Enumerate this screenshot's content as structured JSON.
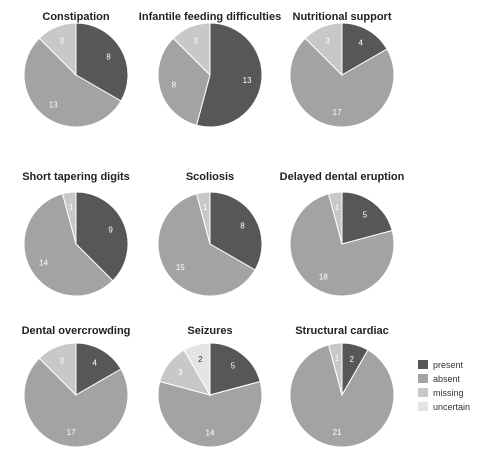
{
  "chart_data": {
    "type": "pie",
    "legend": {
      "placement": "bottom-right",
      "entries": [
        {
          "key": "present",
          "label": "present",
          "color": "#575757"
        },
        {
          "key": "absent",
          "label": "absent",
          "color": "#a3a3a3"
        },
        {
          "key": "missing",
          "label": "missing",
          "color": "#c8c8c8"
        },
        {
          "key": "uncertain",
          "label": "uncertain",
          "color": "#e4e4e4"
        }
      ]
    },
    "charts": [
      {
        "title": "Constipation",
        "slices": [
          {
            "category": "present",
            "value": 8
          },
          {
            "category": "absent",
            "value": 13
          },
          {
            "category": "missing",
            "value": 3
          }
        ]
      },
      {
        "title": "Infantile feeding difficulties",
        "slices": [
          {
            "category": "present",
            "value": 13
          },
          {
            "category": "absent",
            "value": 8
          },
          {
            "category": "missing",
            "value": 3
          }
        ]
      },
      {
        "title": "Nutritional support",
        "slices": [
          {
            "category": "present",
            "value": 4
          },
          {
            "category": "absent",
            "value": 17
          },
          {
            "category": "missing",
            "value": 3
          }
        ]
      },
      {
        "title": "Short tapering digits",
        "slices": [
          {
            "category": "present",
            "value": 9
          },
          {
            "category": "absent",
            "value": 14
          },
          {
            "category": "missing",
            "value": 1
          }
        ]
      },
      {
        "title": "Scoliosis",
        "slices": [
          {
            "category": "present",
            "value": 8
          },
          {
            "category": "absent",
            "value": 15
          },
          {
            "category": "missing",
            "value": 1
          }
        ]
      },
      {
        "title": "Delayed dental eruption",
        "slices": [
          {
            "category": "present",
            "value": 5
          },
          {
            "category": "absent",
            "value": 18
          },
          {
            "category": "missing",
            "value": 1
          }
        ]
      },
      {
        "title": "Dental overcrowding",
        "slices": [
          {
            "category": "present",
            "value": 4
          },
          {
            "category": "absent",
            "value": 17
          },
          {
            "category": "missing",
            "value": 3
          }
        ]
      },
      {
        "title": "Seizures",
        "slices": [
          {
            "category": "present",
            "value": 5
          },
          {
            "category": "absent",
            "value": 14
          },
          {
            "category": "missing",
            "value": 3
          },
          {
            "category": "uncertain",
            "value": 2
          }
        ]
      },
      {
        "title": "Structural cardiac",
        "slices": [
          {
            "category": "present",
            "value": 2
          },
          {
            "category": "absent",
            "value": 21
          },
          {
            "category": "missing",
            "value": 1
          }
        ]
      }
    ]
  }
}
